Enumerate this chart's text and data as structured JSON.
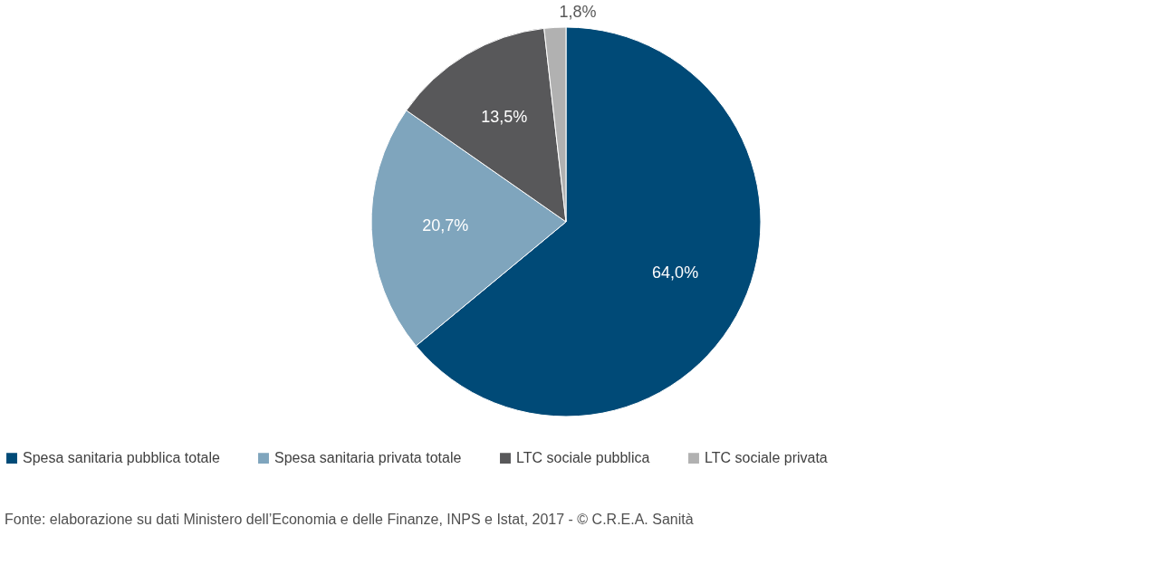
{
  "chart_data": {
    "type": "pie",
    "categories": [
      "Spesa sanitaria pubblica totale",
      "Spesa sanitaria privata totale",
      "LTC sociale pubblica",
      "LTC sociale privata"
    ],
    "values": [
      64.0,
      20.7,
      13.5,
      1.8
    ],
    "colors": [
      "#004a77",
      "#7fa5bd",
      "#58585a",
      "#b1b1b1"
    ],
    "value_labels": [
      "64,0%",
      "20,7%",
      "13,5%",
      "1,8%"
    ],
    "legend": "bottom",
    "annotations": [
      "Fonte: elaborazione su dati Ministero dell’Economia e delle Finanze, INPS e Istat, 2017 - © C.R.E.A. Sanità"
    ]
  }
}
